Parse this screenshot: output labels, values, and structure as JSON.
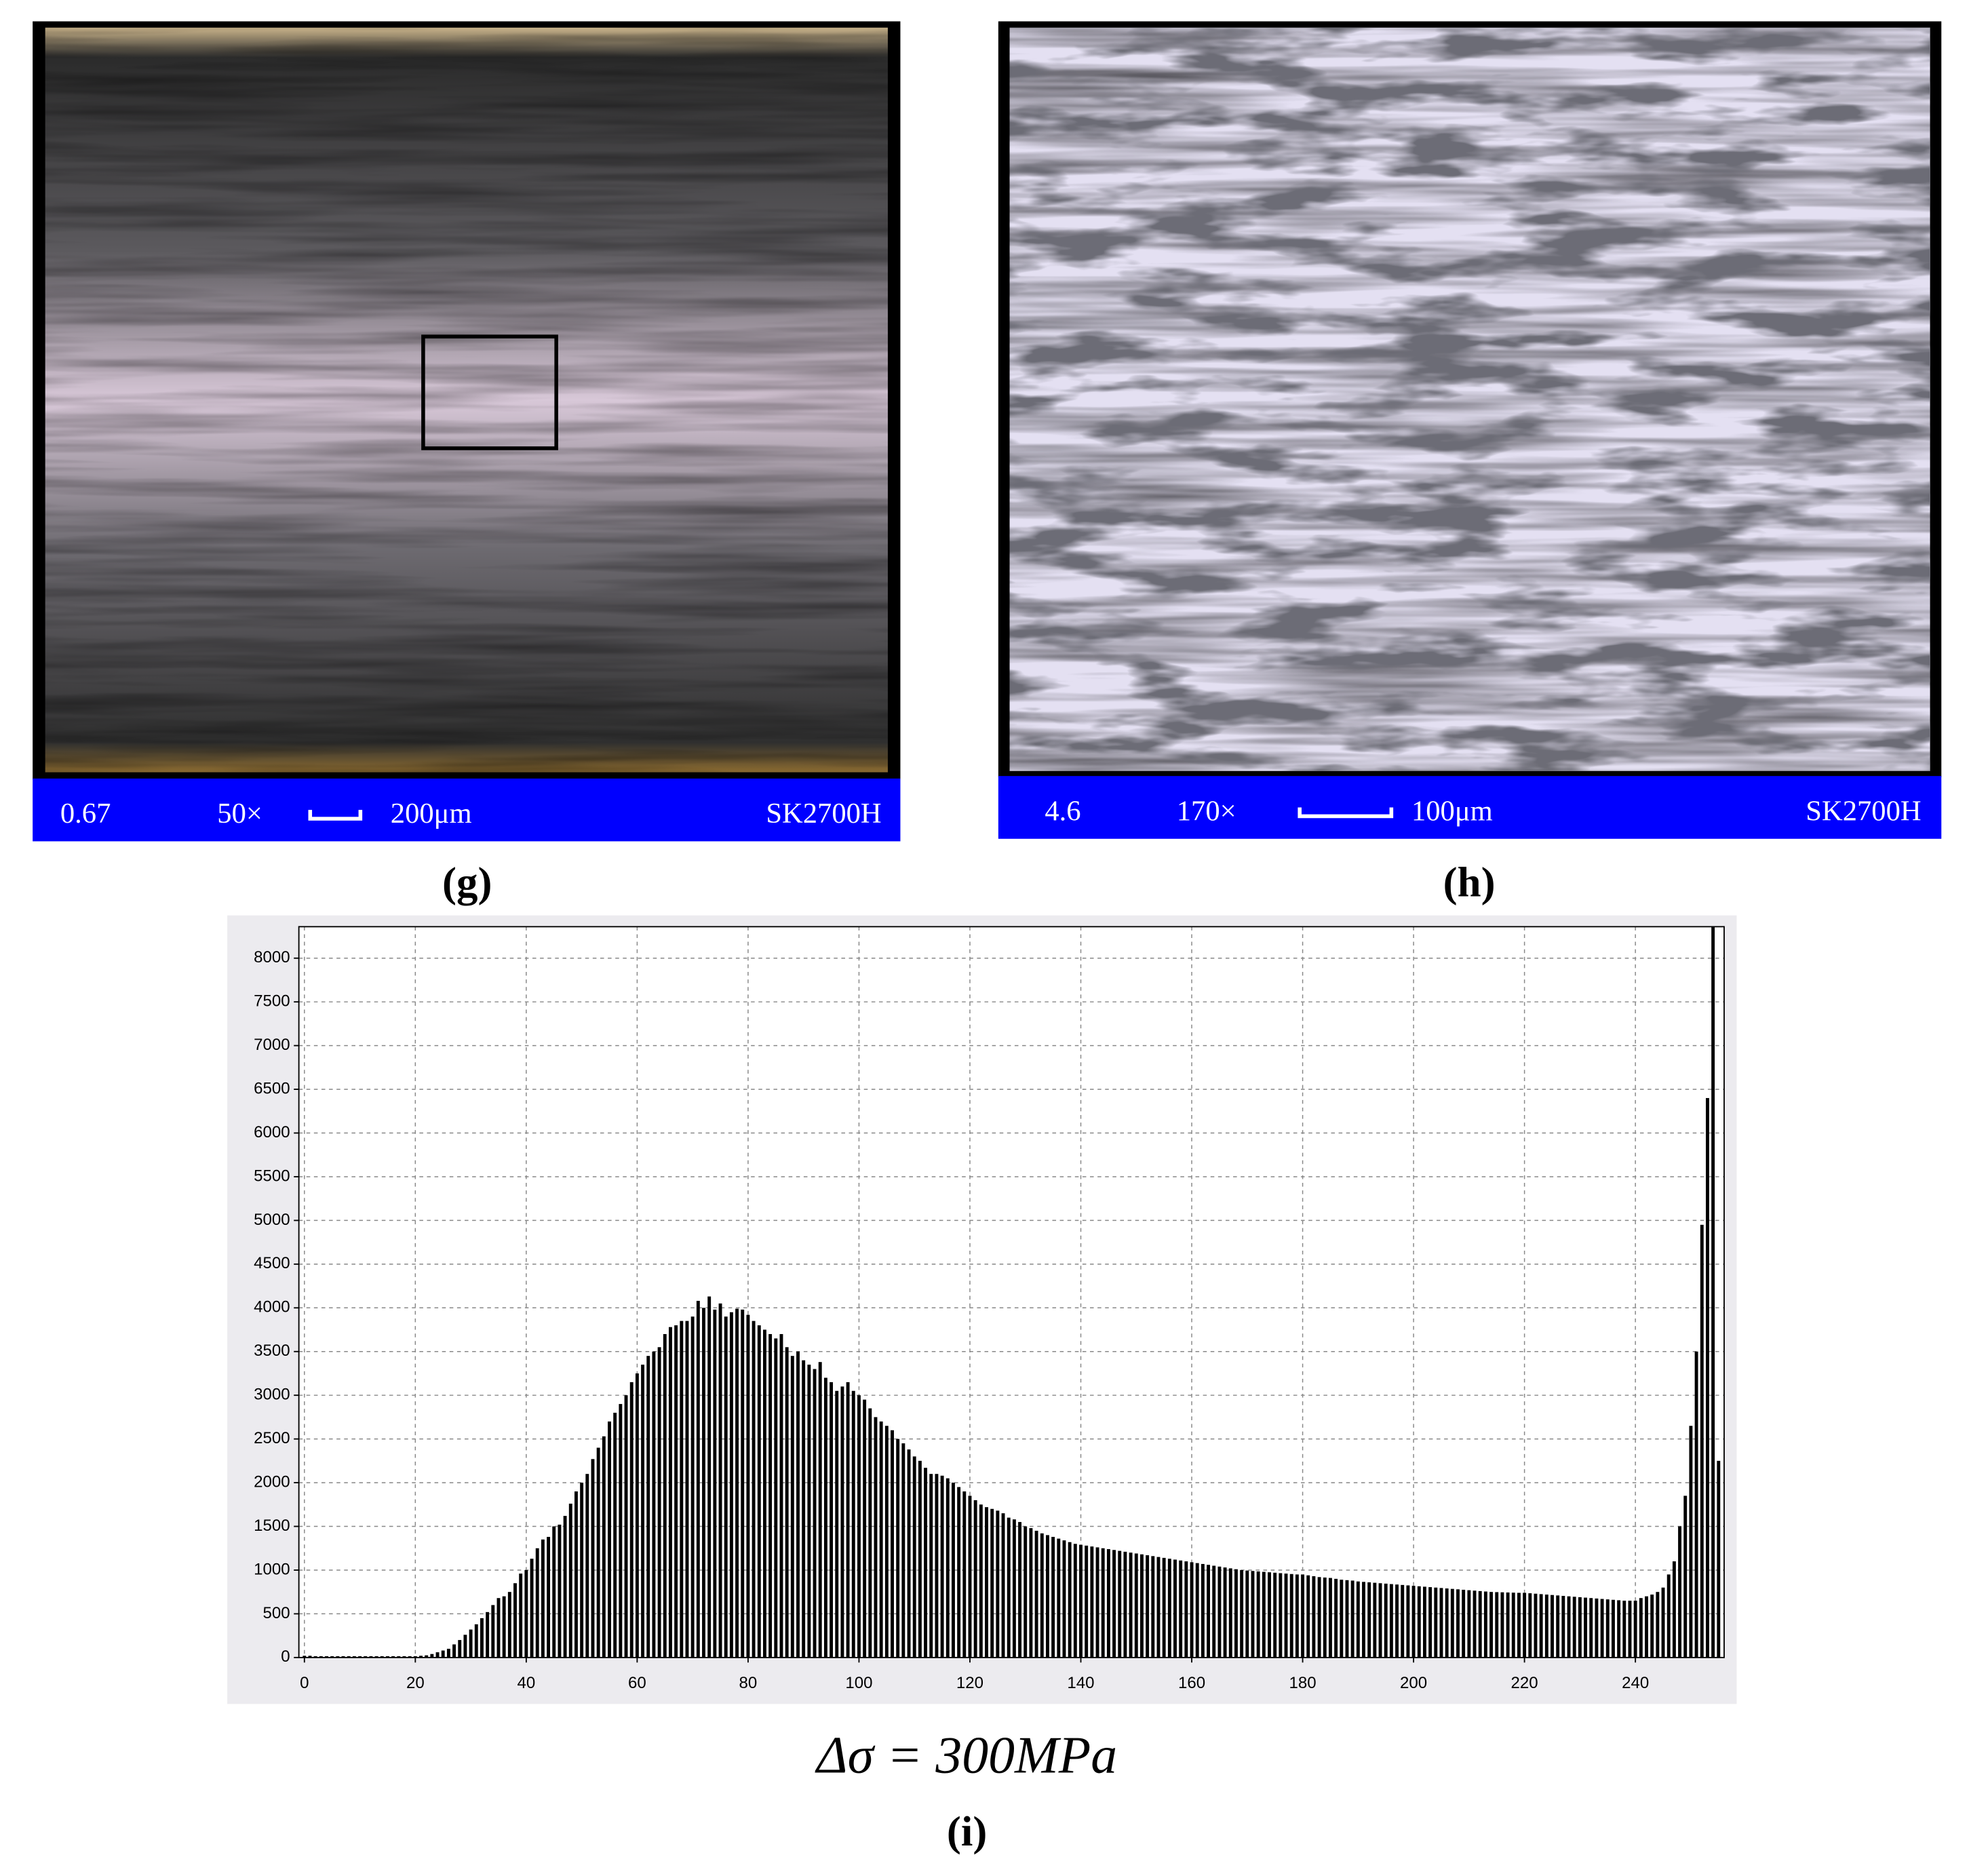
{
  "panels": [
    {
      "scale_bar": [
        "0.67",
        "50×",
        "200μm",
        "SK2700H"
      ],
      "label": "(g)"
    },
    {
      "scale_bar": [
        "4.6",
        "170×",
        "100μm",
        "SK2700H"
      ],
      "label": "(h)"
    }
  ],
  "chart_data": {
    "type": "bar",
    "color": "#000000",
    "grid": true,
    "x": [
      0,
      1,
      2,
      3,
      4,
      5,
      6,
      7,
      8,
      9,
      10,
      11,
      12,
      13,
      14,
      15,
      16,
      17,
      18,
      19,
      20,
      21,
      22,
      23,
      24,
      25,
      26,
      27,
      28,
      29,
      30,
      31,
      32,
      33,
      34,
      35,
      36,
      37,
      38,
      39,
      40,
      41,
      42,
      43,
      44,
      45,
      46,
      47,
      48,
      49,
      50,
      51,
      52,
      53,
      54,
      55,
      56,
      57,
      58,
      59,
      60,
      61,
      62,
      63,
      64,
      65,
      66,
      67,
      68,
      69,
      70,
      71,
      72,
      73,
      74,
      75,
      76,
      77,
      78,
      79,
      80,
      81,
      82,
      83,
      84,
      85,
      86,
      87,
      88,
      89,
      90,
      91,
      92,
      93,
      94,
      95,
      96,
      97,
      98,
      99,
      100,
      101,
      102,
      103,
      104,
      105,
      106,
      107,
      108,
      109,
      110,
      111,
      112,
      113,
      114,
      115,
      116,
      117,
      118,
      119,
      120,
      121,
      122,
      123,
      124,
      125,
      126,
      127,
      128,
      129,
      130,
      131,
      132,
      133,
      134,
      135,
      136,
      137,
      138,
      139,
      140,
      141,
      142,
      143,
      144,
      145,
      146,
      147,
      148,
      149,
      150,
      151,
      152,
      153,
      154,
      155,
      156,
      157,
      158,
      159,
      160,
      161,
      162,
      163,
      164,
      165,
      166,
      167,
      168,
      169,
      170,
      171,
      172,
      173,
      174,
      175,
      176,
      177,
      178,
      179,
      180,
      181,
      182,
      183,
      184,
      185,
      186,
      187,
      188,
      189,
      190,
      191,
      192,
      193,
      194,
      195,
      196,
      197,
      198,
      199,
      200,
      201,
      202,
      203,
      204,
      205,
      206,
      207,
      208,
      209,
      210,
      211,
      212,
      213,
      214,
      215,
      216,
      217,
      218,
      219,
      220,
      221,
      222,
      223,
      224,
      225,
      226,
      227,
      228,
      229,
      230,
      231,
      232,
      233,
      234,
      235,
      236,
      237,
      238,
      239,
      240,
      241,
      242,
      243,
      244,
      245,
      246,
      247,
      248,
      249,
      250,
      251,
      252,
      253,
      254,
      255
    ],
    "values": [
      20,
      20,
      15,
      15,
      15,
      15,
      15,
      15,
      15,
      15,
      15,
      15,
      15,
      15,
      15,
      15,
      15,
      15,
      15,
      15,
      15,
      20,
      25,
      40,
      60,
      80,
      100,
      150,
      200,
      260,
      320,
      380,
      450,
      520,
      600,
      680,
      700,
      750,
      850,
      960,
      1000,
      1130,
      1250,
      1350,
      1380,
      1500,
      1520,
      1620,
      1760,
      1900,
      2000,
      2100,
      2270,
      2400,
      2530,
      2700,
      2800,
      2900,
      3000,
      3150,
      3250,
      3350,
      3450,
      3500,
      3550,
      3700,
      3780,
      3800,
      3850,
      3850,
      3900,
      4080,
      4000,
      4130,
      3980,
      4050,
      3900,
      3950,
      3990,
      3980,
      3920,
      3850,
      3800,
      3750,
      3700,
      3650,
      3700,
      3550,
      3450,
      3500,
      3400,
      3350,
      3300,
      3380,
      3200,
      3150,
      3050,
      3100,
      3150,
      3050,
      3000,
      2950,
      2850,
      2750,
      2700,
      2650,
      2600,
      2500,
      2450,
      2380,
      2300,
      2250,
      2170,
      2100,
      2100,
      2080,
      2050,
      2000,
      1950,
      1900,
      1850,
      1800,
      1750,
      1720,
      1700,
      1680,
      1650,
      1600,
      1580,
      1550,
      1500,
      1480,
      1450,
      1420,
      1400,
      1380,
      1360,
      1340,
      1320,
      1300,
      1290,
      1280,
      1270,
      1260,
      1250,
      1240,
      1230,
      1220,
      1210,
      1200,
      1190,
      1180,
      1170,
      1160,
      1150,
      1140,
      1130,
      1120,
      1110,
      1100,
      1090,
      1080,
      1070,
      1060,
      1050,
      1040,
      1030,
      1020,
      1010,
      1000,
      995,
      990,
      985,
      980,
      975,
      970,
      965,
      960,
      955,
      950,
      950,
      940,
      930,
      920,
      915,
      910,
      900,
      890,
      885,
      880,
      870,
      865,
      860,
      855,
      850,
      845,
      840,
      835,
      830,
      825,
      820,
      815,
      810,
      805,
      800,
      795,
      790,
      785,
      780,
      775,
      770,
      765,
      760,
      755,
      750,
      748,
      746,
      744,
      742,
      740,
      740,
      735,
      730,
      725,
      720,
      715,
      710,
      705,
      700,
      695,
      690,
      685,
      680,
      675,
      670,
      665,
      660,
      655,
      650,
      650,
      650,
      680,
      700,
      720,
      750,
      800,
      950,
      1100,
      1500,
      1850,
      2650,
      3500,
      4950,
      6400,
      8500,
      2250
    ],
    "xlim": [
      -1,
      256
    ],
    "xticks": [
      0,
      20,
      40,
      60,
      80,
      100,
      120,
      140,
      160,
      180,
      200,
      220,
      240
    ],
    "ylim": [
      0,
      8360
    ],
    "yticks": [
      0,
      500,
      1000,
      1500,
      2000,
      2500,
      3000,
      3500,
      4000,
      4500,
      5000,
      5500,
      6000,
      6500,
      7000,
      7500,
      8000
    ]
  },
  "chart_caption": "Δσ = 300MPa",
  "chart_label": "(i)"
}
